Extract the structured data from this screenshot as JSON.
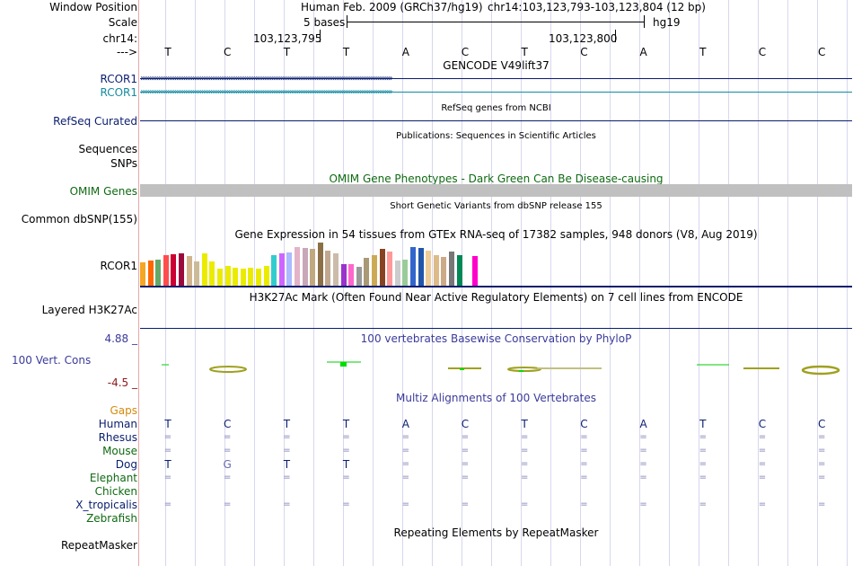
{
  "colors": {
    "navy": "#0a1e6e",
    "teal": "#148ba0",
    "omim_green": "#0f6a12",
    "gaps_orange": "#d48a0b",
    "phylop_blue": "#3b3b9b",
    "phylop_neg": "#8b1a1a",
    "grid": "#c9c9ea",
    "omim_bar": "#c0c0c0",
    "conservation_green": "#00dd00",
    "conservation_olive": "#a0a020"
  },
  "header": {
    "window_position_label": "Window Position",
    "scale_label": "Scale",
    "chrom_label": "chr14:",
    "strand_label": "--->",
    "assembly_text": "Human Feb. 2009 (GRCh37/hg19)",
    "position_text": "chr14:103,123,793-103,123,804 (12 bp)",
    "scale_text": "5 bases",
    "db_label": "hg19",
    "coord_left": "103,123,795",
    "coord_right": "103,123,800"
  },
  "bases": [
    "T",
    "C",
    "T",
    "T",
    "A",
    "C",
    "T",
    "C",
    "A",
    "T",
    "C",
    "C"
  ],
  "tracks": {
    "gencode_title": "GENCODE V49lift37",
    "rcor1_label": "RCOR1",
    "rcor1_label_2": "RCOR1",
    "refseq_label": "RefSeq Curated",
    "refseq_title": "RefSeq genes from NCBI",
    "pubs_title": "Publications: Sequences in Scientific Articles",
    "sequences_label": "Sequences",
    "snps_label": "SNPs",
    "omim_title": "OMIM Gene Phenotypes - Dark Green Can Be Disease-causing",
    "omim_label": "OMIM Genes",
    "dbsnp_title": "Short Genetic Variants from dbSNP release 155",
    "dbsnp_label": "Common dbSNP(155)",
    "gtex_title": "Gene Expression in 54 tissues from GTEx RNA-seq of 17382 samples, 948 donors (V8, Aug 2019)",
    "gtex_label": "RCOR1",
    "h3k27_title": "H3K27Ac Mark (Often Found Near Active Regulatory Elements) on 7 cell lines from ENCODE",
    "h3k27_label": "Layered H3K27Ac",
    "phylop_max": "4.88 _",
    "phylop_label": "100 Vert. Cons",
    "phylop_min": "-4.5 _",
    "phylop_title": "100 vertebrates Basewise Conservation by PhyloP",
    "multiz_title": "Multiz Alignments of 100 Vertebrates",
    "repeat_title": "Repeating Elements by RepeatMasker",
    "repeat_label": "RepeatMasker"
  },
  "gtex_bars": [
    {
      "color": "#f5a623",
      "level": 0.55
    },
    {
      "color": "#ff6600",
      "level": 0.58
    },
    {
      "color": "#66a86a",
      "level": 0.6
    },
    {
      "color": "#ff4d4d",
      "level": 0.7
    },
    {
      "color": "#cc0033",
      "level": 0.72
    },
    {
      "color": "#9b0a3c",
      "level": 0.75
    },
    {
      "color": "#d2b48c",
      "level": 0.68
    },
    {
      "color": "#ccbb99",
      "level": 0.56
    },
    {
      "color": "#ebeb00",
      "level": 0.74
    },
    {
      "color": "#ebeb00",
      "level": 0.56
    },
    {
      "color": "#ebeb00",
      "level": 0.4
    },
    {
      "color": "#ebeb00",
      "level": 0.46
    },
    {
      "color": "#ebeb00",
      "level": 0.42
    },
    {
      "color": "#ebeb00",
      "level": 0.4
    },
    {
      "color": "#ebeb00",
      "level": 0.42
    },
    {
      "color": "#ebeb00",
      "level": 0.4
    },
    {
      "color": "#ebeb00",
      "level": 0.46
    },
    {
      "color": "#33cccc",
      "level": 0.7
    },
    {
      "color": "#cc66ff",
      "level": 0.74
    },
    {
      "color": "#aabbff",
      "level": 0.78
    },
    {
      "color": "#e3b3c7",
      "level": 0.9
    },
    {
      "color": "#c8a8b8",
      "level": 0.88
    },
    {
      "color": "#c0a880",
      "level": 0.86
    },
    {
      "color": "#8b6f47",
      "level": 1.0
    },
    {
      "color": "#c0a890",
      "level": 0.82
    },
    {
      "color": "#ccbbaa",
      "level": 0.76
    },
    {
      "color": "#9933cc",
      "level": 0.5
    },
    {
      "color": "#ff66cc",
      "level": 0.5
    },
    {
      "color": "#999999",
      "level": 0.44
    },
    {
      "color": "#aa9977",
      "level": 0.64
    },
    {
      "color": "#ccaa55",
      "level": 0.7
    },
    {
      "color": "#884422",
      "level": 0.86
    },
    {
      "color": "#ff9999",
      "level": 0.8
    },
    {
      "color": "#cccccc",
      "level": 0.58
    },
    {
      "color": "#99cc99",
      "level": 0.6
    },
    {
      "color": "#3366cc",
      "level": 0.9
    },
    {
      "color": "#2255aa",
      "level": 0.88
    },
    {
      "color": "#eecc99",
      "level": 0.82
    },
    {
      "color": "#ddbb88",
      "level": 0.7
    },
    {
      "color": "#ccaa88",
      "level": 0.66
    },
    {
      "color": "#777777",
      "level": 0.8
    },
    {
      "color": "#008855",
      "level": 0.7
    },
    {
      "color": "#ffffff",
      "level": 0.0
    },
    {
      "color": "#ff00cc",
      "level": 0.68
    }
  ],
  "multiz": {
    "gaps_label": "Gaps",
    "rows": [
      {
        "species": "Human",
        "color": "#0a1e6e",
        "bases": [
          "T",
          "C",
          "T",
          "T",
          "A",
          "C",
          "T",
          "C",
          "A",
          "T",
          "C",
          "C"
        ]
      },
      {
        "species": "Rhesus",
        "color": "#0a1e6e",
        "bases": [
          "=",
          "=",
          "=",
          "=",
          "=",
          "=",
          "=",
          "=",
          "=",
          "=",
          "=",
          "="
        ]
      },
      {
        "species": "Mouse",
        "color": "#0f6a12",
        "bases": [
          "=",
          "=",
          "=",
          "=",
          "=",
          "=",
          "=",
          "=",
          "=",
          "=",
          "=",
          "="
        ]
      },
      {
        "species": "Dog",
        "color": "#0a1e6e",
        "bases": [
          "T",
          "G",
          "T",
          "T",
          "=",
          "=",
          "=",
          "=",
          "=",
          "=",
          "=",
          "="
        ]
      },
      {
        "species": "Elephant",
        "color": "#0f6a12",
        "bases": [
          "=",
          "=",
          "=",
          "=",
          "=",
          "=",
          "=",
          "=",
          "=",
          "=",
          "=",
          "="
        ]
      },
      {
        "species": "Chicken",
        "color": "#0f6a12",
        "bases": [
          "",
          "",
          "",
          "",
          "",
          "",
          "",
          "",
          "",
          "",
          "",
          ""
        ]
      },
      {
        "species": "X_tropicalis",
        "color": "#0a1e6e",
        "bases": [
          "=",
          "=",
          "=",
          "=",
          "=",
          "=",
          "=",
          "=",
          "=",
          "=",
          "=",
          "="
        ]
      },
      {
        "species": "Zebrafish",
        "color": "#0f6a12",
        "bases": [
          "",
          "",
          "",
          "",
          "",
          "",
          "",
          "",
          "",
          "",
          "",
          ""
        ]
      }
    ]
  }
}
